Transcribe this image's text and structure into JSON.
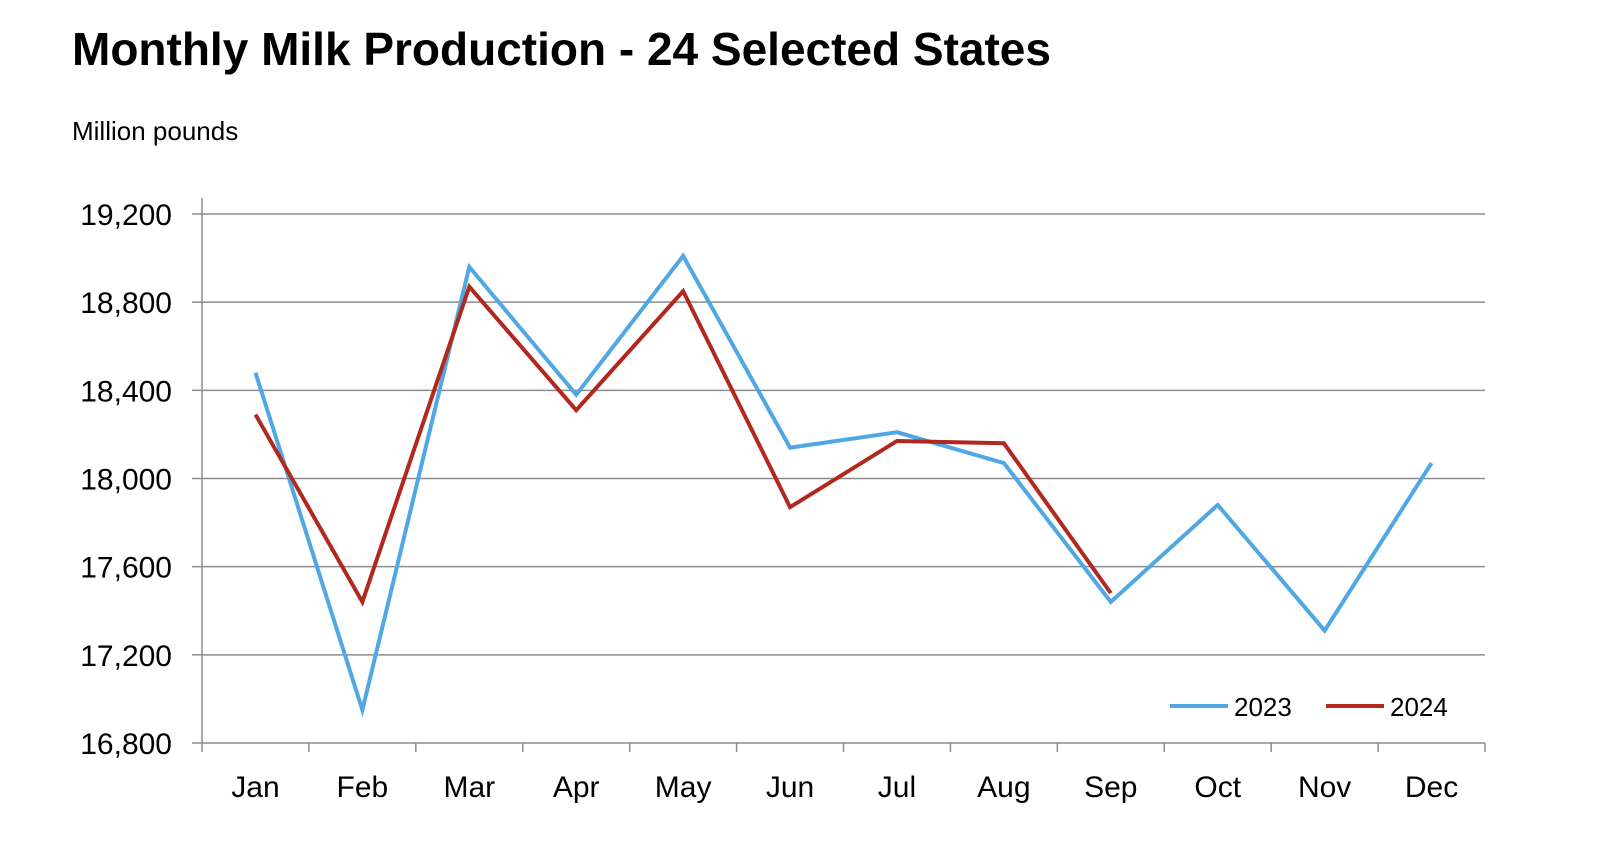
{
  "chart_data": {
    "type": "line",
    "title": "Monthly Milk Production - 24 Selected States",
    "ylabel": "Million pounds",
    "xlabel": "",
    "categories": [
      "Jan",
      "Feb",
      "Mar",
      "Apr",
      "May",
      "Jun",
      "Jul",
      "Aug",
      "Sep",
      "Oct",
      "Nov",
      "Dec"
    ],
    "ylim": [
      16800,
      19200
    ],
    "yticks": [
      16800,
      17200,
      17600,
      18000,
      18400,
      18800,
      19200
    ],
    "ytick_labels": [
      "16,800",
      "17,200",
      "17,600",
      "18,000",
      "18,400",
      "18,800",
      "19,200"
    ],
    "grid": "horizontal",
    "legend_position": "bottom-right",
    "series": [
      {
        "name": "2023",
        "color": "#4FA8E3",
        "values": [
          18480,
          16950,
          18960,
          18380,
          19010,
          18140,
          18210,
          18070,
          17440,
          17880,
          17310,
          18070
        ]
      },
      {
        "name": "2024",
        "color": "#B1281F",
        "values": [
          18290,
          17440,
          18870,
          18310,
          18850,
          17870,
          18170,
          18160,
          17480,
          null,
          null,
          null
        ]
      }
    ]
  }
}
